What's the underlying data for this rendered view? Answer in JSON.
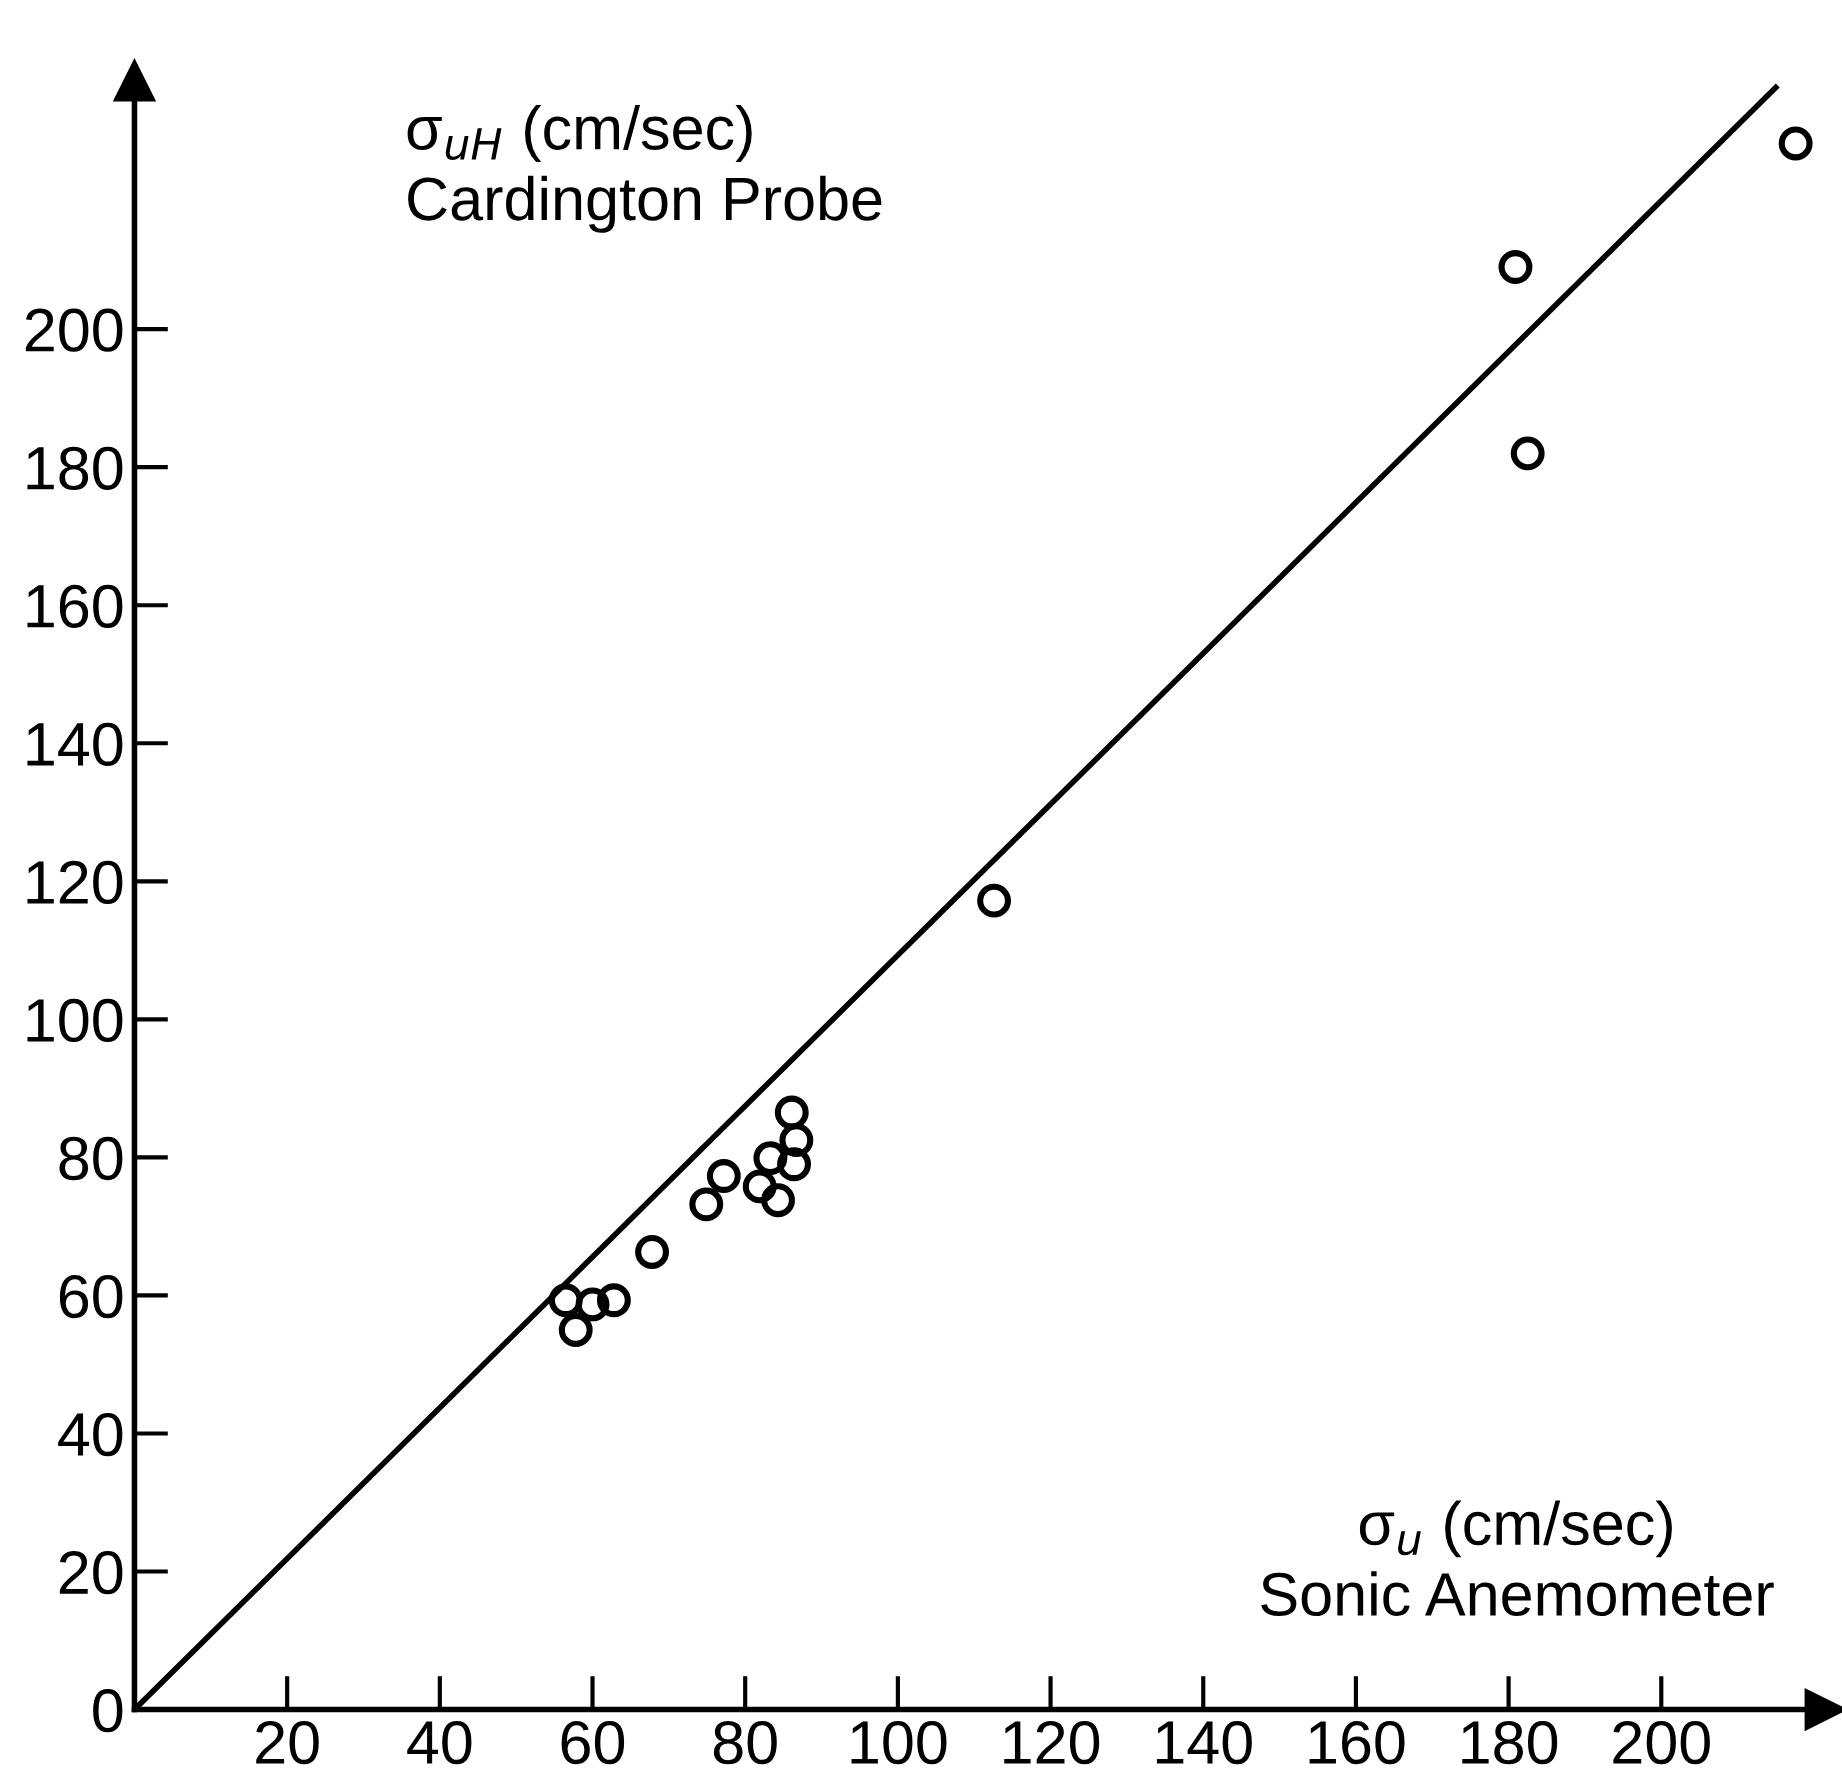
{
  "chart_data": {
    "type": "scatter",
    "xlabel": "σ$_{u}$ (cm/sec)\nSonic Anemometer",
    "ylabel": "σ$_{uH}$ (cm/sec)\nCardington Probe",
    "series": [
      {
        "color": "#000000",
        "marker": "circle",
        "x": [
          56.5,
          57.8,
          60.0,
          62.8,
          67.8,
          74.9,
          77.2,
          81.9,
          83.3,
          84.3,
          86.1,
          86.7,
          86.4,
          112.6,
          180.9,
          182.5,
          217.6
        ],
        "values": [
          59.3,
          55.0,
          58.7,
          59.3,
          66.3,
          73.2,
          77.3,
          75.8,
          79.9,
          73.8,
          86.5,
          82.5,
          79.0,
          117.2,
          209.0,
          182.0,
          226.9
        ]
      },
      {
        "type": "line",
        "color": "#000000",
        "line_style": "solid",
        "x": [
          0,
          215
        ],
        "values": [
          0,
          235
        ]
      }
    ],
    "xlim": [
      0,
      221.5
    ],
    "ylim": [
      0,
      236
    ],
    "xticks": [
      20,
      40,
      60,
      80,
      100,
      120,
      140,
      160,
      180,
      200
    ],
    "yticks": [
      0,
      20,
      40,
      60,
      80,
      100,
      120,
      140,
      160,
      180,
      200
    ],
    "grid": false,
    "legend": false
  }
}
